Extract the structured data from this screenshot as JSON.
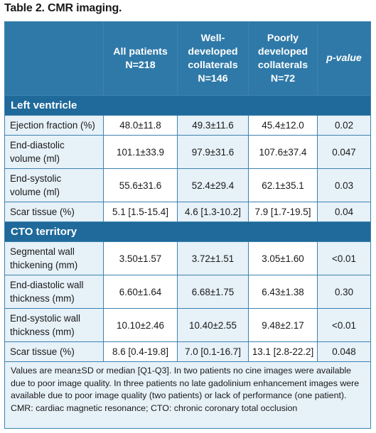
{
  "title": "Table 2. CMR imaging.",
  "columns": {
    "all": [
      "All patients",
      "N=218"
    ],
    "well": [
      "Well-",
      "developed",
      "collaterals",
      "N=146"
    ],
    "poor": [
      "Poorly",
      "developed",
      "collaterals",
      "N=72"
    ],
    "p": "p-value"
  },
  "sections": [
    {
      "name": "Left ventricle",
      "rows": [
        {
          "label": [
            "Ejection fraction (%)"
          ],
          "all": "48.0±11.8",
          "well": "49.3±11.6",
          "poor": "45.4±12.0",
          "p": "0.02"
        },
        {
          "label": [
            "End-diastolic",
            "volume (ml)"
          ],
          "all": "101.1±33.9",
          "well": "97.9±31.6",
          "poor": "107.6±37.4",
          "p": "0.047"
        },
        {
          "label": [
            "End-systolic",
            "volume (ml)"
          ],
          "all": "55.6±31.6",
          "well": "52.4±29.4",
          "poor": "62.1±35.1",
          "p": "0.03"
        },
        {
          "label": [
            "Scar tissue (%)"
          ],
          "all": "5.1 [1.5-15.4]",
          "well": "4.6 [1.3-10.2]",
          "poor": "7.9 [1.7-19.5]",
          "p": "0.04"
        }
      ]
    },
    {
      "name": "CTO territory",
      "rows": [
        {
          "label": [
            "Segmental wall",
            "thickening (mm)"
          ],
          "all": "3.50±1.57",
          "well": "3.72±1.51",
          "poor": "3.05±1.60",
          "p": "<0.01"
        },
        {
          "label": [
            "End-diastolic wall",
            "thickness (mm)"
          ],
          "all": "6.60±1.64",
          "well": "6.68±1.75",
          "poor": "6.43±1.38",
          "p": "0.30"
        },
        {
          "label": [
            "End-systolic wall",
            "thickness (mm)"
          ],
          "all": "10.10±2.46",
          "well": "10.40±2.55",
          "poor": "9.48±2.17",
          "p": "<0.01"
        },
        {
          "label": [
            "Scar tissue (%)"
          ],
          "all": "8.6 [0.4-19.8]",
          "well": "7.0 [0.1-16.7]",
          "poor": "13.1 [2.8-22.2]",
          "p": "0.048"
        }
      ]
    }
  ],
  "footnote": [
    "Values are mean±SD or median [Q1-Q3]. In two patients no cine images were available",
    "due to poor image quality. In three patients no late gadolinium enhancement images were",
    "available due to poor image quality (two patients) or lack of performance (one patient).",
    "CMR: cardiac magnetic resonance; CTO: chronic coronary total occlusion"
  ]
}
